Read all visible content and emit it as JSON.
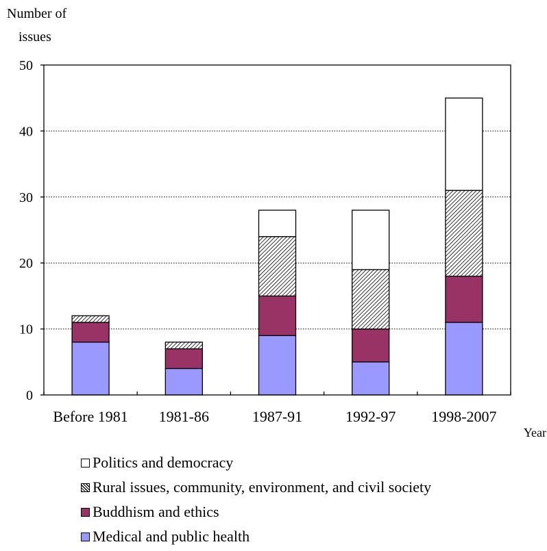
{
  "chart_data": {
    "type": "bar",
    "stacked": true,
    "ylabel": "Number of issues",
    "ylabel_lines": [
      "Number of",
      "issues"
    ],
    "xlabel": "Year",
    "ylim": [
      0,
      50
    ],
    "yticks": [
      0,
      10,
      20,
      30,
      40,
      50
    ],
    "grid": "horizontal dotted",
    "legend_position": "bottom",
    "categories": [
      "Before 1981",
      "1981-86",
      "1987-91",
      "1992-97",
      "1998-2007"
    ],
    "series": [
      {
        "name": "Medical and public health",
        "values": [
          8,
          4,
          9,
          5,
          11
        ],
        "color": "#9999ff",
        "pattern": "solid"
      },
      {
        "name": "Buddhism and ethics",
        "values": [
          3,
          3,
          6,
          5,
          7
        ],
        "color": "#993366",
        "pattern": "solid"
      },
      {
        "name": "Rural issues, community, environment, and civil society",
        "values": [
          1,
          1,
          9,
          9,
          13
        ],
        "color": "#ffffff",
        "pattern": "hatch"
      },
      {
        "name": "Politics and democracy",
        "values": [
          0,
          0,
          4,
          9,
          14
        ],
        "color": "#ffffff",
        "pattern": "solid"
      }
    ],
    "legend_order": [
      3,
      2,
      1,
      0
    ]
  }
}
